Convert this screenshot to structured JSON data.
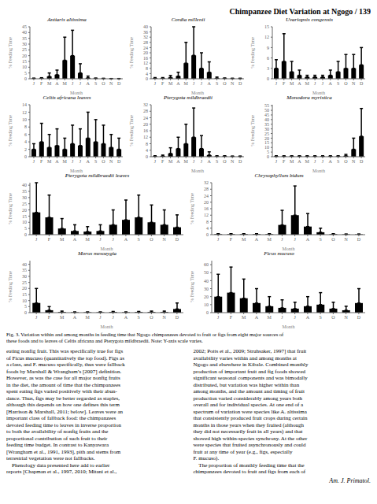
{
  "title": "Chimpanzee Diet Variation at Ngogo / 139",
  "chart_data": [
    {
      "type": "bar",
      "title": "Antiaris altissima",
      "xlabel": "Month",
      "ylabel": "% Feeding Time",
      "categories": [
        "J",
        "F",
        "M",
        "A",
        "M",
        "J",
        "J",
        "A",
        "S",
        "O",
        "N",
        "D"
      ],
      "values": [
        0.3,
        0.5,
        2.0,
        3.5,
        16.0,
        20.0,
        5.0,
        0.8,
        0.3,
        0.2,
        0.1,
        0.1
      ],
      "errors": [
        0.2,
        0.4,
        3.0,
        4.0,
        20.0,
        22.0,
        8.0,
        1.5,
        0.3,
        0.2,
        0.1,
        0.1
      ],
      "color": "#000000",
      "ylim": [
        0,
        45
      ],
      "yticks": [
        0,
        5,
        10,
        15,
        20,
        25,
        30,
        35,
        40,
        45
      ]
    },
    {
      "type": "bar",
      "title": "Cordia millenii",
      "xlabel": "Month",
      "ylabel": "% Feeding Time",
      "categories": [
        "J",
        "F",
        "M",
        "A",
        "M",
        "J",
        "J",
        "A",
        "S",
        "O",
        "N",
        "D"
      ],
      "values": [
        0.5,
        0.5,
        1.0,
        2.0,
        12.0,
        18.0,
        8.0,
        5.0,
        0.5,
        0.3,
        0.2,
        0.2
      ],
      "errors": [
        0.4,
        0.4,
        1.5,
        3.0,
        16.0,
        22.0,
        12.0,
        8.0,
        0.8,
        0.3,
        0.2,
        0.2
      ],
      "color": "#000000",
      "ylim": [
        0,
        40
      ],
      "yticks": [
        0,
        4,
        8,
        12,
        16,
        20,
        24,
        28,
        32,
        36,
        40
      ]
    },
    {
      "type": "bar",
      "title": "Uvariopsis congensis",
      "xlabel": "Month",
      "ylabel": "% Feeding Time",
      "categories": [
        "J",
        "F",
        "M",
        "A",
        "M",
        "J",
        "J",
        "A",
        "S",
        "O",
        "N",
        "D"
      ],
      "values": [
        3.0,
        5.0,
        2.0,
        1.0,
        0.5,
        0.5,
        0.5,
        1.0,
        2.0,
        3.0,
        3.0,
        4.0
      ],
      "errors": [
        2.5,
        8.0,
        3.0,
        1.5,
        0.5,
        0.5,
        0.5,
        1.5,
        3.0,
        4.0,
        4.0,
        5.0
      ],
      "color": "#000000",
      "ylim": [
        0,
        15
      ],
      "yticks": [
        0,
        3,
        6,
        9,
        12,
        15
      ]
    },
    {
      "type": "bar",
      "title": "Celtis africana leaves",
      "xlabel": "Month",
      "ylabel": "% Feeding Time",
      "categories": [
        "J",
        "F",
        "M",
        "A",
        "M",
        "J",
        "J",
        "A",
        "S",
        "O",
        "N",
        "D"
      ],
      "values": [
        2.0,
        4.0,
        2.5,
        3.0,
        2.0,
        3.5,
        3.0,
        5.0,
        4.0,
        3.5,
        2.5,
        2.0
      ],
      "errors": [
        1.5,
        5.0,
        3.5,
        4.5,
        3.0,
        5.0,
        4.5,
        7.0,
        6.0,
        5.0,
        3.5,
        3.0
      ],
      "color": "#000000",
      "ylim": [
        0,
        14
      ],
      "yticks": [
        0,
        2,
        4,
        6,
        8,
        10,
        12,
        14
      ]
    },
    {
      "type": "bar",
      "title": "Pterygota mildbraedii",
      "xlabel": "Month",
      "ylabel": "% Feeding Time",
      "categories": [
        "J",
        "F",
        "M",
        "A",
        "M",
        "J",
        "J",
        "A",
        "S",
        "O",
        "N",
        "D"
      ],
      "values": [
        0.3,
        0.5,
        2.0,
        5.0,
        8.0,
        12.0,
        5.0,
        1.0,
        0.3,
        0.3,
        0.2,
        0.2
      ],
      "errors": [
        0.3,
        0.5,
        3.5,
        7.0,
        12.0,
        18.0,
        8.0,
        2.0,
        0.3,
        0.3,
        0.2,
        0.2
      ],
      "color": "#000000",
      "ylim": [
        0,
        32
      ],
      "yticks": [
        0,
        4,
        8,
        12,
        16,
        20,
        24,
        28,
        32
      ]
    },
    {
      "type": "bar",
      "title": "Monodora myristica",
      "xlabel": "Month",
      "ylabel": "% Feeding Time",
      "categories": [
        "J",
        "F",
        "M",
        "A",
        "M",
        "J",
        "J",
        "A",
        "S",
        "O",
        "N",
        "D"
      ],
      "values": [
        0.5,
        0.5,
        0.5,
        0.5,
        0.5,
        0.5,
        0.5,
        0.5,
        0.5,
        1.0,
        8.0,
        22.0
      ],
      "errors": [
        0.5,
        0.5,
        0.5,
        0.5,
        0.5,
        0.5,
        0.5,
        0.5,
        0.5,
        1.5,
        12.0,
        30.0
      ],
      "color": "#000000",
      "ylim": [
        0,
        56
      ],
      "yticks": [
        0,
        5,
        10,
        15,
        20,
        25,
        30,
        35,
        40,
        45,
        50,
        55
      ]
    },
    {
      "type": "bar",
      "title": "Pterygota mildbraedii leaves",
      "xlabel": "Month",
      "ylabel": "% Feeding Time",
      "categories": [
        "J",
        "F",
        "M",
        "A",
        "M",
        "J",
        "J",
        "A",
        "S",
        "O",
        "N",
        "D"
      ],
      "values": [
        18.0,
        14.0,
        5.0,
        3.0,
        2.5,
        3.0,
        8.0,
        12.0,
        14.0,
        10.0,
        8.0,
        6.0
      ],
      "errors": [
        24.0,
        18.0,
        8.0,
        5.0,
        4.0,
        5.0,
        12.0,
        16.0,
        18.0,
        14.0,
        12.0,
        10.0
      ],
      "color": "#000000",
      "ylim": [
        0,
        42
      ],
      "yticks": [
        0,
        5,
        10,
        15,
        20,
        25,
        30,
        35,
        40
      ]
    },
    {
      "type": "bar",
      "title": "Chrysophyllum bidum",
      "xlabel": "Month",
      "ylabel": "% Feeding Time",
      "categories": [
        "J",
        "F",
        "M",
        "A",
        "M",
        "J",
        "J",
        "A",
        "S",
        "O",
        "N",
        "D"
      ],
      "values": [
        0.3,
        0.3,
        0.3,
        0.3,
        0.3,
        6.0,
        12.0,
        5.0,
        1.5,
        0.3,
        0.2,
        0.2
      ],
      "errors": [
        0.3,
        0.3,
        0.3,
        0.3,
        0.3,
        9.0,
        18.0,
        8.0,
        2.5,
        0.3,
        0.2,
        0.2
      ],
      "color": "#000000",
      "ylim": [
        0,
        32
      ],
      "yticks": [
        0,
        4,
        8,
        12,
        16,
        20,
        24,
        28,
        32
      ]
    },
    {
      "type": "bar",
      "title": "Morus mesozygia",
      "xlabel": "Month",
      "ylabel": "% Feeding Time",
      "categories": [
        "J",
        "F",
        "M",
        "A",
        "M",
        "J",
        "J",
        "A",
        "S",
        "O",
        "N",
        "D"
      ],
      "values": [
        8.0,
        2.0,
        0.5,
        0.3,
        0.3,
        0.3,
        0.5,
        0.3,
        0.5,
        0.5,
        0.5,
        3.0
      ],
      "errors": [
        12.0,
        3.0,
        0.8,
        0.3,
        0.3,
        0.3,
        0.5,
        0.3,
        0.5,
        0.8,
        0.8,
        5.0
      ],
      "color": "#000000",
      "ylim": [
        0,
        43
      ],
      "yticks": [
        0,
        5,
        10,
        15,
        20,
        25,
        30,
        35,
        40
      ]
    },
    {
      "type": "bar",
      "title": "Ficus mucuso",
      "xlabel": "Month",
      "ylabel": "% Feeding Time",
      "categories": [
        "J",
        "F",
        "M",
        "A",
        "M",
        "J",
        "J",
        "A",
        "S",
        "O",
        "N",
        "D"
      ],
      "values": [
        20.0,
        25.0,
        18.0,
        12.0,
        8.0,
        6.0,
        5.0,
        8.0,
        10.0,
        5.0,
        3.0,
        12.0
      ],
      "errors": [
        28.0,
        32.0,
        24.0,
        18.0,
        12.0,
        10.0,
        8.0,
        12.0,
        15.0,
        8.0,
        5.0,
        18.0
      ],
      "color": "#000000",
      "ylim": [
        0,
        65
      ],
      "yticks": [
        0,
        10,
        20,
        30,
        40,
        50,
        60
      ]
    }
  ],
  "annotations": {
    "caption": [
      "Fig. 3. Variation within and among months in feeding time that Ngogo chimpanzees devoted to fruit or figs from eight major sources of",
      "these foods and to leaves of Celtis africana and Pterygota mildbraedii. Note: Y-axis scale varies."
    ],
    "body": [
      [
        "eating nonfig fruit. This was specifically true for figs",
        "of Ficus mucuso (quantitatively the top food). Figs as",
        "a class, and F. mucuso specifically, thus were fallback",
        "foods by Marshall & Wrangham’s [2007] definition.",
        "However, as was the case for all major nonfig fruits",
        "in the diet, the amount of time that the chimpanzees",
        "spent eating figs varied positively with their abun-",
        "dance. Thus, figs may be better regarded as staples,",
        "although this depends on how one defines this term",
        "[Harrison & Marshall, 2011; below]. Leaves were an",
        "important class of fallback food: the chimpanzees",
        "devoted feeding time to leaves in inverse proportion",
        "to both the availability of nonfig fruits and the",
        "proportional contribution of such fruit to their",
        "feeding time budget. In contrast to Kanyawara",
        "[Wrangham et al., 1991, 1993], pith and stems from",
        "terrestrial vegetation were not fallbacks.",
        "    Phenology data presented here add to earlier",
        "reports [Chapman et al., 1997, 2010; Mitani et al.,"
      ],
      [
        "2002; Potts et al., 2009; Struhsaker, 1997] that fruit",
        "availability varies within and among months at",
        "Ngogo and elsewhere in Kibale. Combined monthly",
        "production of important fruit and fig foods showed",
        "significant seasonal components and was bimodally",
        "distributed, but variation was higher within than",
        "among months, and the amount and timing of fruit",
        "production varied considerably among years both",
        "overall and for individual species. At one end of a",
        "spectrum of variation were species like A. altissima",
        "that consistently produced fruit crops during certain",
        "months in those years when they fruited (although",
        "they did not necessarily fruit in all years) and that",
        "showed high within-species synchrony. At the other",
        "were species that fruited asynchronously and could",
        "fruit at any time of year (e.g., figs, especially",
        "F. mucuso).",
        "    The proportion of monthly feeding time that the",
        "chimpanzees devoted to fruit and figs from each of"
      ]
    ],
    "footer": "Am. J. Primatol."
  }
}
